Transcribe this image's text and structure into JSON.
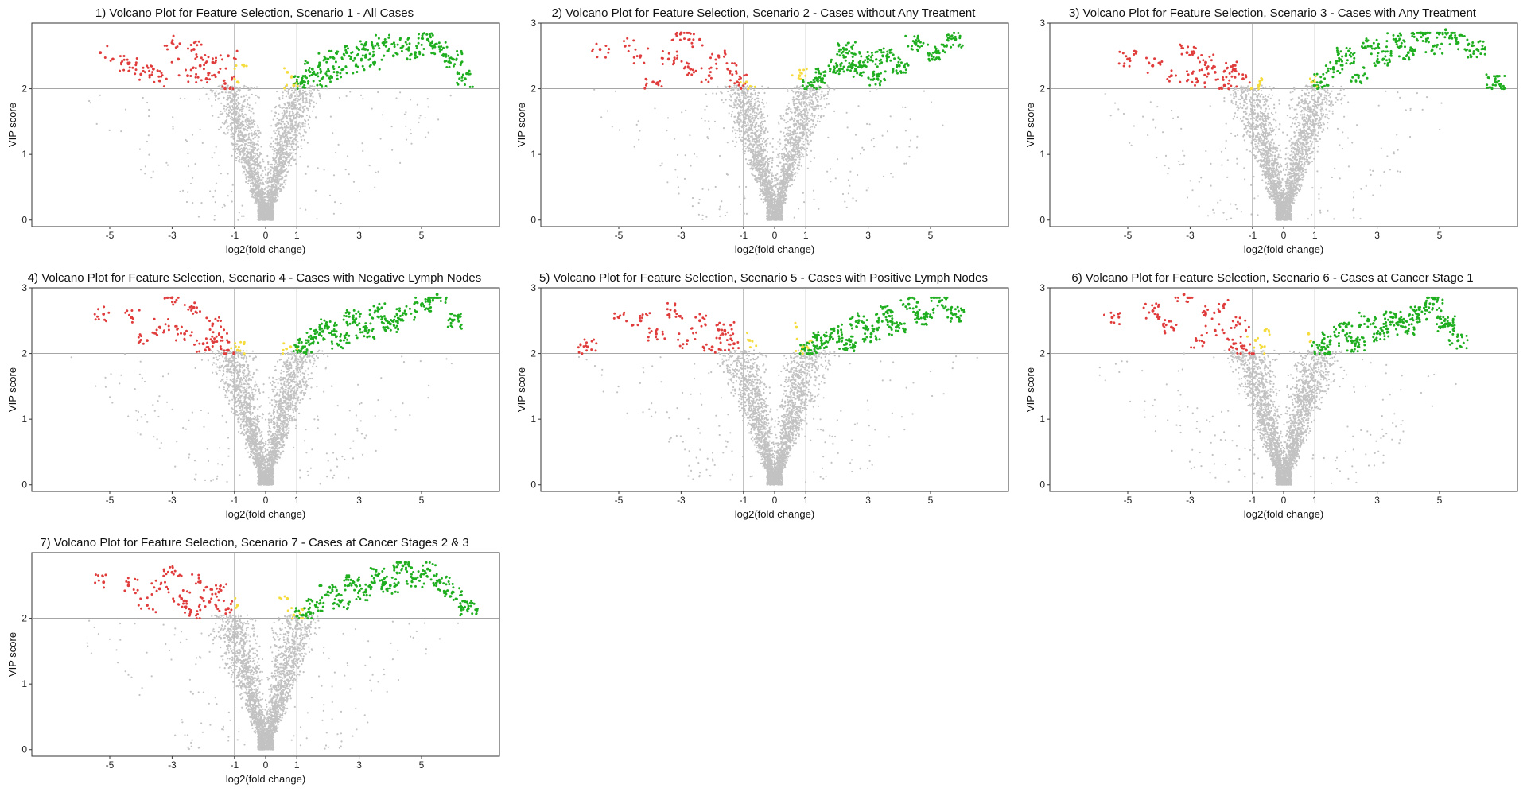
{
  "chart_data": [
    {
      "type": "scatter",
      "title": "1) Volcano Plot for Feature Selection, Scenario 1 - All Cases",
      "xlabel": "log2(fold change)",
      "ylabel": "VIP score",
      "xlim": [
        -7.5,
        7.5
      ],
      "ylim": [
        -0.1,
        3.0
      ],
      "xticks": [
        -5,
        -3,
        -1,
        0,
        1,
        3,
        5
      ],
      "yticks": [
        0,
        1,
        2
      ],
      "thresholds": {
        "x": [
          -1,
          1
        ],
        "y": 2
      },
      "colors": {
        "up": "#1fae1f",
        "down": "#e03c3c",
        "borderline": "#f5dc3c",
        "ns": "#c2c2c2"
      },
      "grid": false,
      "series": [
        {
          "values": [
            [
              -5.3,
              2.55
            ],
            [
              -4.9,
              2.45
            ],
            [
              -4.4,
              2.38
            ],
            [
              -4.0,
              2.22
            ],
            [
              -3.6,
              2.3
            ],
            [
              -3.4,
              2.12
            ],
            [
              -3.0,
              2.7
            ],
            [
              -2.8,
              2.45
            ],
            [
              -2.5,
              2.2
            ],
            [
              -2.3,
              2.6
            ],
            [
              -2.1,
              2.35
            ],
            [
              -1.9,
              2.15
            ],
            [
              -1.7,
              2.4
            ],
            [
              -1.5,
              2.25
            ],
            [
              -1.3,
              2.08
            ],
            [
              -1.2,
              2.5
            ]
          ]
        },
        {
          "values": [
            [
              1.2,
              2.1
            ],
            [
              1.5,
              2.3
            ],
            [
              1.8,
              2.15
            ],
            [
              2.0,
              2.45
            ],
            [
              2.3,
              2.25
            ],
            [
              2.6,
              2.55
            ],
            [
              2.9,
              2.35
            ],
            [
              3.2,
              2.6
            ],
            [
              3.5,
              2.4
            ],
            [
              3.8,
              2.7
            ],
            [
              4.1,
              2.5
            ],
            [
              4.4,
              2.65
            ],
            [
              4.8,
              2.55
            ],
            [
              5.2,
              2.75
            ],
            [
              5.6,
              2.6
            ],
            [
              6.0,
              2.45
            ],
            [
              6.4,
              2.15
            ]
          ]
        },
        {
          "values": [
            [
              -0.9,
              2.1
            ],
            [
              -0.7,
              2.35
            ],
            [
              0.7,
              2.25
            ],
            [
              0.9,
              2.05
            ]
          ]
        }
      ]
    },
    {
      "type": "scatter",
      "title": "2) Volcano Plot for Feature Selection, Scenario 2 - Cases without Any Treatment",
      "xlabel": "log2(fold change)",
      "ylabel": "VIP score",
      "xlim": [
        -7.5,
        7.5
      ],
      "ylim": [
        -0.1,
        3.0
      ],
      "xticks": [
        -5,
        -3,
        -1,
        0,
        1,
        3,
        5
      ],
      "yticks": [
        0,
        1,
        2,
        3
      ],
      "thresholds": {
        "x": [
          -1,
          1
        ],
        "y": 2
      },
      "colors": {
        "up": "#1fae1f",
        "down": "#e03c3c",
        "borderline": "#f5dc3c",
        "ns": "#c2c2c2"
      },
      "grid": false,
      "series": [
        {
          "values": [
            [
              -5.6,
              2.6
            ],
            [
              -4.8,
              2.65
            ],
            [
              -4.3,
              2.5
            ],
            [
              -3.9,
              2.1
            ],
            [
              -3.4,
              2.45
            ],
            [
              -3.0,
              2.85
            ],
            [
              -2.7,
              2.3
            ],
            [
              -2.4,
              2.75
            ],
            [
              -2.1,
              2.2
            ],
            [
              -1.8,
              2.5
            ],
            [
              -1.5,
              2.3
            ],
            [
              -1.2,
              2.1
            ]
          ]
        },
        {
          "values": [
            [
              1.2,
              2.05
            ],
            [
              1.6,
              2.2
            ],
            [
              2.0,
              2.35
            ],
            [
              2.3,
              2.6
            ],
            [
              2.6,
              2.3
            ],
            [
              3.0,
              2.45
            ],
            [
              3.3,
              2.15
            ],
            [
              3.6,
              2.5
            ],
            [
              4.0,
              2.35
            ],
            [
              4.5,
              2.7
            ],
            [
              5.2,
              2.55
            ],
            [
              5.8,
              2.75
            ]
          ]
        },
        {
          "values": [
            [
              -0.9,
              2.1
            ],
            [
              0.8,
              2.2
            ]
          ]
        }
      ]
    },
    {
      "type": "scatter",
      "title": "3) Volcano Plot for Feature Selection, Scenario 3 - Cases with Any Treatment",
      "xlabel": "log2(fold change)",
      "ylabel": "VIP score",
      "xlim": [
        -7.5,
        7.5
      ],
      "ylim": [
        -0.1,
        3.0
      ],
      "xticks": [
        -5,
        -3,
        -1,
        0,
        1,
        3,
        5
      ],
      "yticks": [
        0,
        1,
        2,
        3
      ],
      "thresholds": {
        "x": [
          -1,
          1
        ],
        "y": 2
      },
      "colors": {
        "up": "#1fae1f",
        "down": "#e03c3c",
        "borderline": "#f5dc3c",
        "ns": "#c2c2c2"
      },
      "grid": false,
      "series": [
        {
          "values": [
            [
              -5.0,
              2.45
            ],
            [
              -4.2,
              2.35
            ],
            [
              -3.6,
              2.2
            ],
            [
              -3.1,
              2.55
            ],
            [
              -2.8,
              2.15
            ],
            [
              -2.5,
              2.4
            ],
            [
              -2.2,
              2.25
            ],
            [
              -1.9,
              2.05
            ],
            [
              -1.6,
              2.3
            ],
            [
              -1.3,
              2.15
            ]
          ]
        },
        {
          "values": [
            [
              1.2,
              2.1
            ],
            [
              1.6,
              2.3
            ],
            [
              2.0,
              2.5
            ],
            [
              2.4,
              2.2
            ],
            [
              2.8,
              2.65
            ],
            [
              3.2,
              2.45
            ],
            [
              3.6,
              2.75
            ],
            [
              4.0,
              2.55
            ],
            [
              4.4,
              2.85
            ],
            [
              4.8,
              2.65
            ],
            [
              5.2,
              2.9
            ],
            [
              5.6,
              2.7
            ],
            [
              6.2,
              2.6
            ],
            [
              6.8,
              2.1
            ]
          ]
        },
        {
          "values": [
            [
              -0.8,
              2.05
            ],
            [
              0.9,
              2.1
            ]
          ]
        }
      ]
    },
    {
      "type": "scatter",
      "title": "4) Volcano Plot for Feature Selection, Scenario 4 - Cases with Negative Lymph Nodes",
      "xlabel": "log2(fold change)",
      "ylabel": "VIP score",
      "xlim": [
        -7.5,
        7.5
      ],
      "ylim": [
        -0.1,
        3.0
      ],
      "xticks": [
        -5,
        -3,
        -1,
        0,
        1,
        3,
        5
      ],
      "yticks": [
        0,
        1,
        2,
        3
      ],
      "thresholds": {
        "x": [
          -1,
          1
        ],
        "y": 2
      },
      "colors": {
        "up": "#1fae1f",
        "down": "#e03c3c",
        "borderline": "#f5dc3c",
        "ns": "#c2c2c2"
      },
      "grid": false,
      "series": [
        {
          "values": [
            [
              -5.2,
              2.6
            ],
            [
              -4.3,
              2.55
            ],
            [
              -3.8,
              2.2
            ],
            [
              -3.4,
              2.4
            ],
            [
              -3.0,
              2.85
            ],
            [
              -2.6,
              2.3
            ],
            [
              -2.3,
              2.7
            ],
            [
              -2.0,
              2.15
            ],
            [
              -1.7,
              2.45
            ],
            [
              -1.4,
              2.25
            ],
            [
              -1.2,
              2.05
            ]
          ]
        },
        {
          "values": [
            [
              1.2,
              2.1
            ],
            [
              1.6,
              2.25
            ],
            [
              2.0,
              2.4
            ],
            [
              2.4,
              2.2
            ],
            [
              2.8,
              2.55
            ],
            [
              3.2,
              2.35
            ],
            [
              3.6,
              2.65
            ],
            [
              4.0,
              2.45
            ],
            [
              4.5,
              2.6
            ],
            [
              5.0,
              2.75
            ],
            [
              5.5,
              2.9
            ],
            [
              6.0,
              2.5
            ]
          ]
        },
        {
          "values": [
            [
              -0.9,
              2.05
            ],
            [
              -0.7,
              2.15
            ],
            [
              0.8,
              2.1
            ]
          ]
        }
      ]
    },
    {
      "type": "scatter",
      "title": "5) Volcano Plot for Feature Selection, Scenario 5 - Cases with Positive Lymph Nodes",
      "xlabel": "log2(fold change)",
      "ylabel": "VIP score",
      "xlim": [
        -7.5,
        7.5
      ],
      "ylim": [
        -0.1,
        3.0
      ],
      "xticks": [
        -5,
        -3,
        -1,
        0,
        1,
        3,
        5
      ],
      "yticks": [
        0,
        1,
        2,
        3
      ],
      "thresholds": {
        "x": [
          -1,
          1
        ],
        "y": 2
      },
      "colors": {
        "up": "#1fae1f",
        "down": "#e03c3c",
        "borderline": "#f5dc3c",
        "ns": "#c2c2c2"
      },
      "grid": false,
      "series": [
        {
          "values": [
            [
              -6.0,
              2.1
            ],
            [
              -5.0,
              2.55
            ],
            [
              -4.3,
              2.5
            ],
            [
              -3.8,
              2.3
            ],
            [
              -3.2,
              2.65
            ],
            [
              -2.8,
              2.2
            ],
            [
              -2.4,
              2.5
            ],
            [
              -2.0,
              2.1
            ],
            [
              -1.6,
              2.35
            ],
            [
              -1.3,
              2.15
            ]
          ]
        },
        {
          "values": [
            [
              1.1,
              2.05
            ],
            [
              1.5,
              2.2
            ],
            [
              1.9,
              2.35
            ],
            [
              2.3,
              2.15
            ],
            [
              2.7,
              2.5
            ],
            [
              3.1,
              2.3
            ],
            [
              3.5,
              2.6
            ],
            [
              3.9,
              2.4
            ],
            [
              4.3,
              2.75
            ],
            [
              4.8,
              2.55
            ],
            [
              5.3,
              2.8
            ],
            [
              5.8,
              2.6
            ]
          ]
        },
        {
          "values": [
            [
              -0.8,
              2.2
            ],
            [
              0.7,
              2.4
            ],
            [
              0.9,
              2.1
            ]
          ]
        }
      ]
    },
    {
      "type": "scatter",
      "title": "6) Volcano Plot for Feature Selection, Scenario 6 - Cases at Cancer Stage 1",
      "xlabel": "log2(fold change)",
      "ylabel": "VIP score",
      "xlim": [
        -7.5,
        7.5
      ],
      "ylim": [
        -0.1,
        3.0
      ],
      "xticks": [
        -5,
        -3,
        -1,
        0,
        1,
        3,
        5
      ],
      "yticks": [
        0,
        1,
        2,
        3
      ],
      "thresholds": {
        "x": [
          -1,
          1
        ],
        "y": 2
      },
      "colors": {
        "up": "#1fae1f",
        "down": "#e03c3c",
        "borderline": "#f5dc3c",
        "ns": "#c2c2c2"
      },
      "grid": false,
      "series": [
        {
          "values": [
            [
              -5.5,
              2.55
            ],
            [
              -4.2,
              2.65
            ],
            [
              -3.6,
              2.4
            ],
            [
              -3.2,
              2.9
            ],
            [
              -2.8,
              2.2
            ],
            [
              -2.5,
              2.6
            ],
            [
              -2.2,
              2.35
            ],
            [
              -1.9,
              2.75
            ],
            [
              -1.6,
              2.15
            ],
            [
              -1.4,
              2.45
            ],
            [
              -1.2,
              2.05
            ]
          ]
        },
        {
          "values": [
            [
              1.2,
              2.05
            ],
            [
              1.5,
              2.2
            ],
            [
              1.9,
              2.35
            ],
            [
              2.3,
              2.15
            ],
            [
              2.7,
              2.5
            ],
            [
              3.1,
              2.3
            ],
            [
              3.5,
              2.55
            ],
            [
              3.9,
              2.4
            ],
            [
              4.3,
              2.6
            ],
            [
              4.8,
              2.75
            ],
            [
              5.2,
              2.45
            ],
            [
              5.6,
              2.2
            ]
          ]
        },
        {
          "values": [
            [
              -0.9,
              2.2
            ],
            [
              -0.7,
              2.1
            ],
            [
              -0.6,
              2.35
            ],
            [
              0.8,
              2.3
            ]
          ]
        }
      ]
    },
    {
      "type": "scatter",
      "title": "7) Volcano Plot for Feature Selection, Scenario 7 - Cases at Cancer Stages 2 & 3",
      "xlabel": "log2(fold change)",
      "ylabel": "VIP score",
      "xlim": [
        -7.5,
        7.5
      ],
      "ylim": [
        -0.1,
        3.0
      ],
      "xticks": [
        -5,
        -3,
        -1,
        0,
        1,
        3,
        5
      ],
      "yticks": [
        0,
        1,
        2
      ],
      "thresholds": {
        "x": [
          -1,
          1
        ],
        "y": 2
      },
      "colors": {
        "up": "#1fae1f",
        "down": "#e03c3c",
        "borderline": "#f5dc3c",
        "ns": "#c2c2c2"
      },
      "grid": false,
      "series": [
        {
          "values": [
            [
              -5.2,
              2.55
            ],
            [
              -4.4,
              2.5
            ],
            [
              -3.8,
              2.2
            ],
            [
              -3.4,
              2.45
            ],
            [
              -3.0,
              2.7
            ],
            [
              -2.7,
              2.3
            ],
            [
              -2.4,
              2.1
            ],
            [
              -2.1,
              2.55
            ],
            [
              -1.8,
              2.25
            ],
            [
              -1.5,
              2.4
            ],
            [
              -1.2,
              2.15
            ]
          ]
        },
        {
          "values": [
            [
              1.2,
              2.05
            ],
            [
              1.6,
              2.2
            ],
            [
              2.0,
              2.4
            ],
            [
              2.4,
              2.25
            ],
            [
              2.8,
              2.55
            ],
            [
              3.2,
              2.4
            ],
            [
              3.6,
              2.65
            ],
            [
              4.0,
              2.5
            ],
            [
              4.4,
              2.8
            ],
            [
              4.8,
              2.6
            ],
            [
              5.2,
              2.75
            ],
            [
              5.6,
              2.55
            ],
            [
              6.0,
              2.4
            ],
            [
              6.5,
              2.15
            ]
          ]
        },
        {
          "values": [
            [
              -0.9,
              2.2
            ],
            [
              0.7,
              2.3
            ],
            [
              0.9,
              2.05
            ]
          ]
        }
      ]
    }
  ]
}
